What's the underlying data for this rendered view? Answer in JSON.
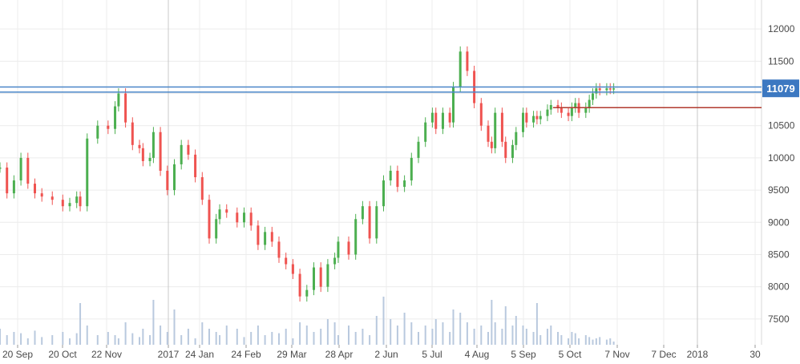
{
  "chart_data": {
    "type": "candlestick",
    "x_ticks": [
      "20 Sep",
      "20 Oct",
      "22 Nov",
      "2017",
      "24 Jan",
      "24 Feb",
      "29 Mar",
      "28 Apr",
      "2 Jun",
      "5 Jul",
      "4 Aug",
      "5 Sep",
      "5 Oct",
      "7 Nov",
      "7 Dec",
      "2018",
      "30"
    ],
    "y_ticks": [
      "12000",
      "11500",
      "11000",
      "10500",
      "10000",
      "9500",
      "9000",
      "8500",
      "8000",
      "7500"
    ],
    "ylim": [
      7100,
      12450
    ],
    "last_price_label": "11079",
    "horizontal_levels": [
      11100,
      11020
    ],
    "trend_line": {
      "x": [
        0.793,
        1.0
      ],
      "y": [
        10780,
        10780
      ]
    },
    "colors": {
      "up": "#4caf50",
      "down": "#ef5350",
      "volume": "#b9c9de",
      "level": "#4a86c8",
      "price_tag": "#3c78c1",
      "trend": "#b03a2e",
      "grid": "#ececec"
    },
    "x_positions": [
      0,
      0.01,
      0.02,
      0.03,
      0.04,
      0.05,
      0.06,
      0.075,
      0.09,
      0.1,
      0.11,
      0.115,
      0.125,
      0.14,
      0.155,
      0.165,
      0.17,
      0.18,
      0.19,
      0.2,
      0.205,
      0.215,
      0.22,
      0.23,
      0.24,
      0.25,
      0.26,
      0.27,
      0.28,
      0.29,
      0.3,
      0.31,
      0.315,
      0.325,
      0.34,
      0.35,
      0.36,
      0.37,
      0.38,
      0.39,
      0.4,
      0.41,
      0.42,
      0.43,
      0.44,
      0.45,
      0.46,
      0.47,
      0.48,
      0.485,
      0.5,
      0.51,
      0.52,
      0.53,
      0.54,
      0.55,
      0.56,
      0.57,
      0.58,
      0.59,
      0.6,
      0.61,
      0.62,
      0.625,
      0.635,
      0.645,
      0.65,
      0.66,
      0.67,
      0.68,
      0.69,
      0.7,
      0.705,
      0.71,
      0.72,
      0.725,
      0.735,
      0.74,
      0.75,
      0.755,
      0.765,
      0.77,
      0.775,
      0.785,
      0.79,
      0.8,
      0.805,
      0.815,
      0.82,
      0.825,
      0.83,
      0.84,
      0.845,
      0.85,
      0.855,
      0.86,
      0.87,
      0.875,
      0.88
    ],
    "close": [
      9850,
      9450,
      9650,
      10000,
      9600,
      9450,
      9400,
      9350,
      9250,
      9300,
      9400,
      9250,
      10300,
      10500,
      10450,
      10800,
      11000,
      10550,
      10200,
      10150,
      9950,
      10000,
      10400,
      9800,
      9500,
      9900,
      10200,
      10050,
      9700,
      9350,
      8750,
      9050,
      9200,
      9150,
      9000,
      9150,
      8950,
      8650,
      8850,
      8700,
      8450,
      8350,
      8200,
      7850,
      7950,
      8300,
      8000,
      8350,
      8450,
      8700,
      8500,
      9050,
      9250,
      8750,
      9250,
      9650,
      9800,
      9550,
      9650,
      10000,
      10250,
      10550,
      10700,
      10450,
      10700,
      10550,
      11100,
      11650,
      11350,
      10850,
      10500,
      10250,
      10150,
      10700,
      10250,
      10000,
      10200,
      10400,
      10700,
      10550,
      10650,
      10600,
      10650,
      10750,
      10820,
      10780,
      10700,
      10650,
      10780,
      10850,
      10700,
      10780,
      10900,
      11000,
      11079,
      11050,
      11079,
      11070,
      11079
    ],
    "volume": [
      0.25,
      0.15,
      0.2,
      0.18,
      0.1,
      0.22,
      0.12,
      0.15,
      0.2,
      0.1,
      0.18,
      0.65,
      0.3,
      0.15,
      0.2,
      0.15,
      0.1,
      0.35,
      0.18,
      0.12,
      0.25,
      0.15,
      0.7,
      0.3,
      0.2,
      0.55,
      0.15,
      0.25,
      0.1,
      0.35,
      0.25,
      0.2,
      0.15,
      0.3,
      0.25,
      0.12,
      0.2,
      0.3,
      0.15,
      0.2,
      0.18,
      0.25,
      0.1,
      0.35,
      0.3,
      0.2,
      0.25,
      0.4,
      0.35,
      0.15,
      0.3,
      0.2,
      0.25,
      0.15,
      0.45,
      0.75,
      0.4,
      0.3,
      0.5,
      0.35,
      0.2,
      0.3,
      0.25,
      0.4,
      0.35,
      0.2,
      0.55,
      0.5,
      0.35,
      0.25,
      0.3,
      0.2,
      0.7,
      0.35,
      0.25,
      0.6,
      0.3,
      0.45,
      0.3,
      0.25,
      0.2,
      0.65,
      0.15,
      0.25,
      0.3,
      0.2,
      0.15,
      0.1,
      0.2,
      0.18,
      0.1,
      0.15,
      0.12,
      0.08,
      0.1,
      0.12,
      0.08,
      0.1,
      0.05
    ]
  }
}
